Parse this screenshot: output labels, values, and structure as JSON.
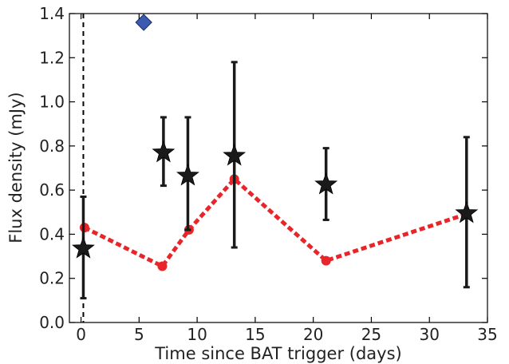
{
  "chart_data": {
    "type": "scatter",
    "xlabel": "Time since BAT trigger (days)",
    "ylabel": "Flux density (mJy)",
    "xlim": [
      -1,
      35
    ],
    "ylim": [
      0,
      1.4
    ],
    "xticks": [
      0,
      5,
      10,
      15,
      20,
      25,
      30,
      35
    ],
    "yticks": [
      0.0,
      0.2,
      0.4,
      0.6,
      0.8,
      1.0,
      1.2,
      1.4
    ],
    "xtick_labels": [
      "0",
      "5",
      "10",
      "15",
      "20",
      "25",
      "30",
      "35"
    ],
    "ytick_labels": [
      "0.0",
      "0.2",
      "0.4",
      "0.6",
      "0.8",
      "1.0",
      "1.2",
      "1.4"
    ],
    "grid": false,
    "reference_line": {
      "x": 0.2,
      "style": "dashed",
      "color": "#000000"
    },
    "series": [
      {
        "marker": "star",
        "color": "#1a1a1a",
        "points": [
          {
            "x": 0.2,
            "y": 0.335,
            "ylow": 0.11,
            "yhigh": 0.57
          },
          {
            "x": 7.1,
            "y": 0.77,
            "ylow": 0.62,
            "yhigh": 0.93
          },
          {
            "x": 9.2,
            "y": 0.665,
            "ylow": 0.42,
            "yhigh": 0.93
          },
          {
            "x": 13.2,
            "y": 0.755,
            "ylow": 0.34,
            "yhigh": 1.18
          },
          {
            "x": 21.1,
            "y": 0.625,
            "ylow": 0.465,
            "yhigh": 0.79
          },
          {
            "x": 33.2,
            "y": 0.495,
            "ylow": 0.16,
            "yhigh": 0.84
          }
        ]
      },
      {
        "marker": "circle",
        "line": "dotted",
        "color": "#e8262a",
        "points": [
          {
            "x": 0.3,
            "y": 0.43
          },
          {
            "x": 7.0,
            "y": 0.255
          },
          {
            "x": 9.3,
            "y": 0.42
          },
          {
            "x": 13.2,
            "y": 0.65
          },
          {
            "x": 21.1,
            "y": 0.28
          },
          {
            "x": 33.1,
            "y": 0.49
          }
        ]
      },
      {
        "marker": "diamond",
        "color": "#3a5bb0",
        "points": [
          {
            "x": 5.4,
            "y": 1.36
          }
        ]
      }
    ]
  }
}
